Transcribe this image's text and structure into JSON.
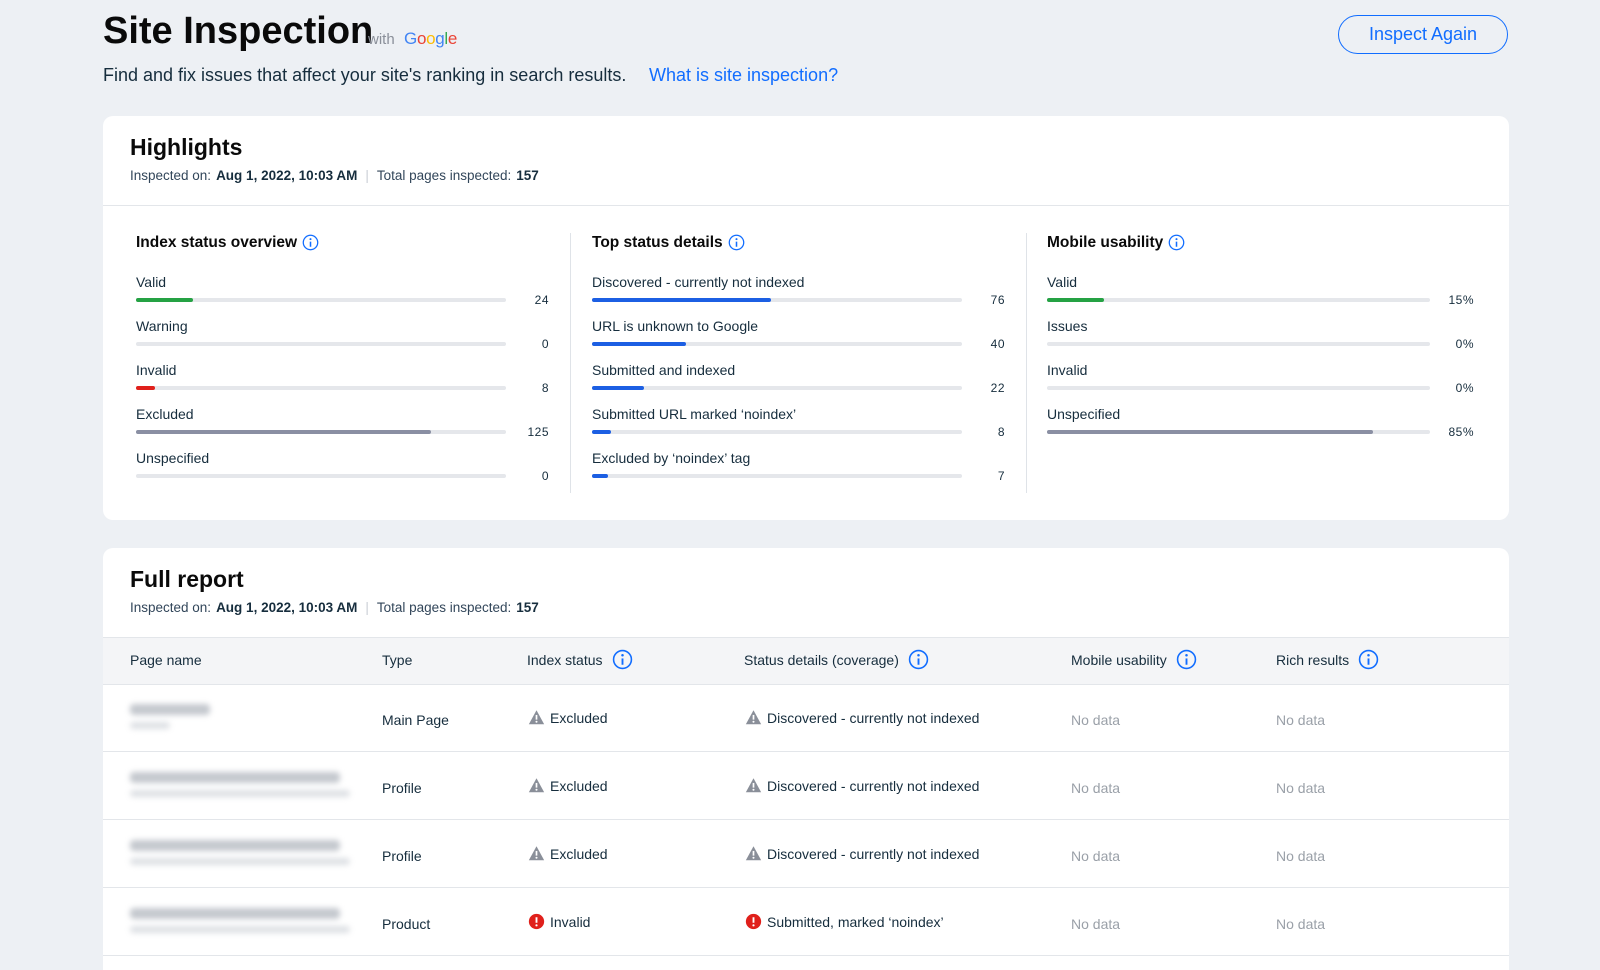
{
  "header": {
    "title": "Site Inspection",
    "with": "with",
    "brand": "Google",
    "subtitle": "Find and fix issues that affect your site's ranking in search results.",
    "link": "What is site inspection?",
    "button": "Inspect Again"
  },
  "highlights": {
    "title": "Highlights",
    "inspected_label": "Inspected on:",
    "inspected_value": "Aug 1, 2022, 10:03 AM",
    "total_label": "Total pages inspected:",
    "total_value": 157,
    "sections": [
      {
        "title": "Index status overview",
        "items": [
          {
            "label": "Valid",
            "value": 24,
            "color": "#25a244"
          },
          {
            "label": "Warning",
            "value": 0,
            "color": "#8a8fa3"
          },
          {
            "label": "Invalid",
            "value": 8,
            "color": "#e0201b"
          },
          {
            "label": "Excluded",
            "value": 125,
            "color": "#8a8fa3"
          },
          {
            "label": "Unspecified",
            "value": 0,
            "color": "#8a8fa3"
          }
        ]
      },
      {
        "title": "Top status details",
        "items": [
          {
            "label": "Discovered - currently not indexed",
            "value": 76,
            "color": "#1c5fe3"
          },
          {
            "label": "URL is unknown to Google",
            "value": 40,
            "color": "#1c5fe3"
          },
          {
            "label": "Submitted and indexed",
            "value": 22,
            "color": "#1c5fe3"
          },
          {
            "label": "Submitted URL marked ‘noindex’",
            "value": 8,
            "color": "#1c5fe3"
          },
          {
            "label": "Excluded by ‘noindex’ tag",
            "value": 7,
            "color": "#1c5fe3"
          }
        ]
      },
      {
        "title": "Mobile usability",
        "items": [
          {
            "label": "Valid",
            "value": {
              "value": 15,
              "label": "15%"
            },
            "color": "#25a244"
          },
          {
            "label": "Issues",
            "value": {
              "value": 0,
              "label": "0%"
            },
            "color": "#8a8fa3"
          },
          {
            "label": "Invalid",
            "value": {
              "value": 0,
              "label": "0%"
            },
            "color": "#8a8fa3"
          },
          {
            "label": "Unspecified",
            "value": {
              "value": 85,
              "label": "85%"
            },
            "color": "#8a8fa3"
          }
        ]
      }
    ]
  },
  "full_report": {
    "title": "Full report",
    "inspected_label": "Inspected on:",
    "inspected_value": "Aug 1, 2022, 10:03 AM",
    "total_label": "Total pages inspected:",
    "total_value": 157,
    "columns": [
      "Page name",
      "Type",
      "Index status",
      "Status details (coverage)",
      "Mobile usability",
      "Rich results"
    ],
    "rows": [
      {
        "type": "Main Page",
        "index_status": "Excluded",
        "index_level": "warning",
        "status_details": "Discovered - currently not indexed",
        "status_level": "warning",
        "mobile": "No data",
        "rich": "No data"
      },
      {
        "type": "Profile",
        "index_status": "Excluded",
        "index_level": "warning",
        "status_details": "Discovered - currently not indexed",
        "status_level": "warning",
        "mobile": "No data",
        "rich": "No data"
      },
      {
        "type": "Profile",
        "index_status": "Excluded",
        "index_level": "warning",
        "status_details": "Discovered - currently not indexed",
        "status_level": "warning",
        "mobile": "No data",
        "rich": "No data"
      },
      {
        "type": "Product",
        "index_status": "Invalid",
        "index_level": "error",
        "status_details": "Submitted, marked ‘noindex’",
        "status_level": "error",
        "mobile": "No data",
        "rich": "No data"
      }
    ]
  }
}
